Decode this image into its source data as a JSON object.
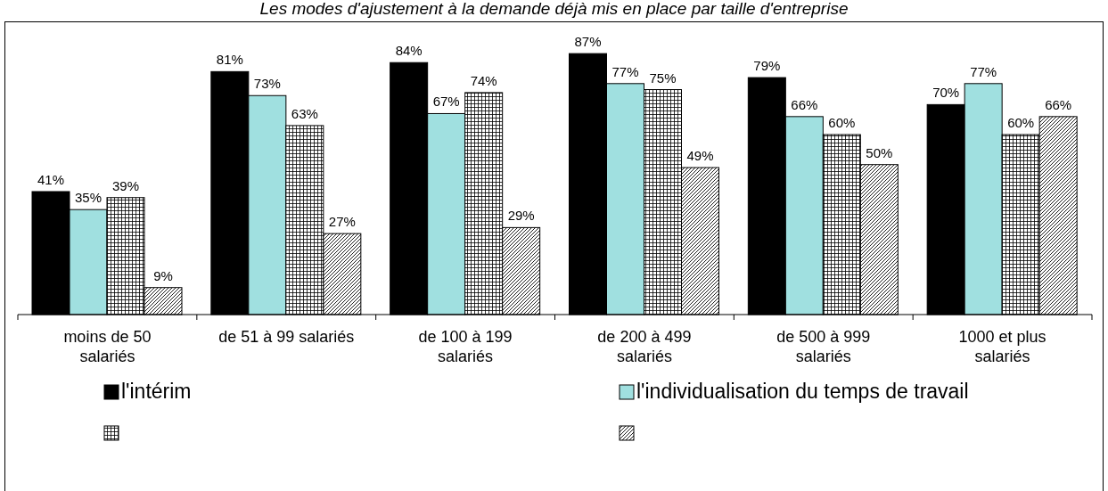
{
  "chart_data": {
    "type": "bar",
    "title": "Les modes d'ajustement à la demande déjà mis en place par taille d'entreprise",
    "categories": [
      "moins de 50 salariés",
      "de 51 à 99 salariés",
      "de 100 à 199 salariés",
      "de 200 à 499 salariés",
      "de 500 à 999 salariés",
      "1000 et plus salariés"
    ],
    "series": [
      {
        "name": "l'intérim",
        "color": "#000000",
        "values": [
          41,
          81,
          84,
          87,
          79,
          70
        ],
        "value_labels": [
          "41%",
          "81%",
          "84%",
          "87%",
          "79%",
          "70%"
        ]
      },
      {
        "name": "l'individualisation du temps de travail",
        "color": "#a0e0e0",
        "values": [
          35,
          73,
          67,
          77,
          66,
          77
        ],
        "value_labels": [
          "35%",
          "73%",
          "67%",
          "77%",
          "66%",
          "77%"
        ]
      },
      {
        "color": "#000000",
        "values": [
          39,
          63,
          74,
          75,
          60,
          60
        ],
        "value_labels": [
          "39%",
          "63%",
          "74%",
          "75%",
          "60%",
          "60%"
        ]
      },
      {
        "color": "#000000",
        "values": [
          9,
          27,
          29,
          49,
          50,
          66
        ],
        "value_labels": [
          "9%",
          "27%",
          "29%",
          "49%",
          "50%",
          "66%"
        ]
      }
    ],
    "legend": "bottom"
  }
}
